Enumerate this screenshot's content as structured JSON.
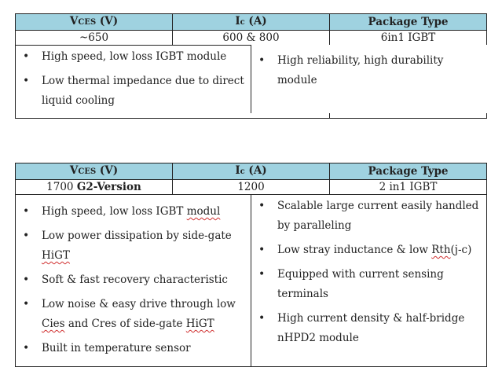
{
  "table1": {
    "headers": {
      "v_main": "V",
      "v_sub": "CES",
      "v_unit": " (V)",
      "i_main": "I",
      "i_sub": "c",
      "i_unit": " (A)",
      "pkg": "Package Type"
    },
    "values": {
      "voltage": "~650",
      "current": "600 & 800",
      "package": "6in1 IGBT"
    },
    "left_features": [
      "High speed, low loss IGBT module",
      "Low thermal impedance due to direct liquid cooling"
    ],
    "right_features": [
      "High reliability, high durability module"
    ]
  },
  "table2": {
    "headers": {
      "v_main": "V",
      "v_sub": "CES",
      "v_unit": " (V)",
      "i_main": "I",
      "i_sub": "c",
      "i_unit": " (A)",
      "pkg": "Package Type"
    },
    "values": {
      "voltage_num": "1700 ",
      "voltage_version": "G2-Version",
      "current": "1200",
      "package": "2 in1 IGBT"
    },
    "left_features": {
      "f1_a": "High speed, low loss IGBT ",
      "f1_b": "modul",
      "f2_a": "Low power dissipation by side-gate ",
      "f2_b": "HiGT",
      "f3": "Soft & fast recovery characteristic",
      "f4_a": "Low noise & easy drive through low ",
      "f4_b": "Cies",
      "f4_c": " and ",
      "f4_d": "Cres",
      "f4_e": " of side-gate ",
      "f4_f": "HiGT",
      "f5": "Built in temperature sensor"
    },
    "right_features": {
      "f1": "Scalable large current easily handled by paralleling",
      "f2_a": "Low stray inductance & low ",
      "f2_b": "Rth",
      "f2_c": "(j-c)",
      "f3": "Equipped with current sensing terminals",
      "f4": "High current density & half-bridge nHPD2 module"
    }
  }
}
